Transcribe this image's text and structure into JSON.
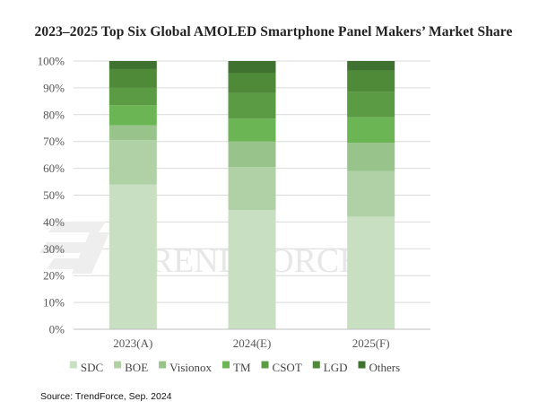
{
  "chart_data": {
    "type": "bar",
    "stacked": true,
    "percent_stacked": true,
    "title": "2023–2025 Top Six Global AMOLED Smartphone  Panel Makers’ Market Share",
    "categories": [
      "2023(A)",
      "2024(E)",
      "2025(F)"
    ],
    "series": [
      {
        "name": "SDC",
        "color": "#c9dfc2",
        "values": [
          54,
          44.5,
          42
        ]
      },
      {
        "name": "BOE",
        "color": "#b0d0a6",
        "values": [
          16.5,
          16,
          17
        ]
      },
      {
        "name": "Visionox",
        "color": "#98c48b",
        "values": [
          5.5,
          9.5,
          10.5
        ]
      },
      {
        "name": "TM",
        "color": "#6cb554",
        "values": [
          7.5,
          8.5,
          9.5
        ]
      },
      {
        "name": "CSOT",
        "color": "#5b9b44",
        "values": [
          6.5,
          9.5,
          9.5
        ]
      },
      {
        "name": "LGD",
        "color": "#4e8a38",
        "values": [
          7,
          7.5,
          8
        ]
      },
      {
        "name": "Others",
        "color": "#3f7230",
        "values": [
          3,
          4.5,
          3.5
        ]
      }
    ],
    "ylim": [
      0,
      100
    ],
    "yticks": [
      "0%",
      "10%",
      "20%",
      "30%",
      "40%",
      "50%",
      "60%",
      "70%",
      "80%",
      "90%",
      "100%"
    ],
    "grid": true,
    "legend_position": "bottom"
  },
  "watermark": {
    "text": "TRENDFORCE"
  },
  "source": "Source: TrendForce, Sep. 2024"
}
